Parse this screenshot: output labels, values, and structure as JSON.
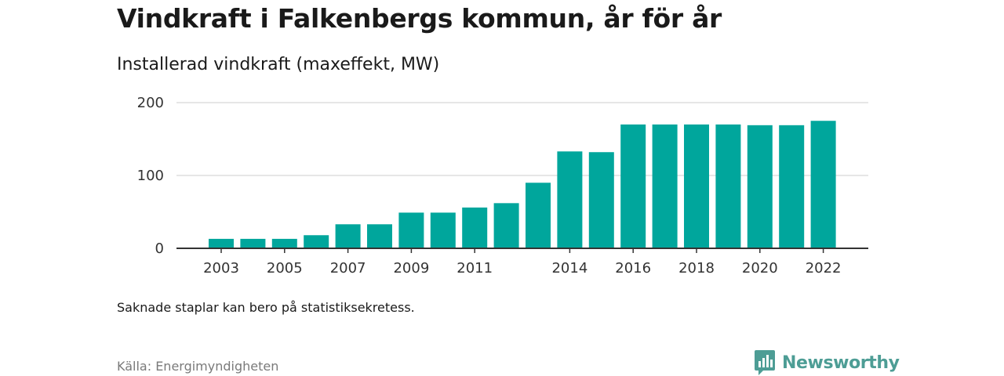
{
  "header": {
    "title": "Vindkraft i Falkenbergs kommun, år för år",
    "subtitle": "Installerad vindkraft (maxeffekt, MW)"
  },
  "footer": {
    "note": "Saknade staplar kan bero på statistiksekretess.",
    "source": "Källa: Energimyndigheten",
    "brand": "Newsworthy"
  },
  "colors": {
    "bar": "#00a69c",
    "grid": "#dddddd",
    "axis": "#333333",
    "brand": "#4d9d95"
  },
  "chart_data": {
    "type": "bar",
    "title": "Vindkraft i Falkenbergs kommun, år för år",
    "subtitle": "Installerad vindkraft (maxeffekt, MW)",
    "categories": [
      "2003",
      "2004",
      "2005",
      "2006",
      "2007",
      "2008",
      "2009",
      "2010",
      "2011",
      "2012",
      "2013",
      "2014",
      "2015",
      "2016",
      "2017",
      "2018",
      "2019",
      "2020",
      "2021",
      "2022"
    ],
    "values": [
      13,
      13,
      13,
      18,
      33,
      33,
      49,
      49,
      56,
      62,
      90,
      133,
      132,
      170,
      170,
      170,
      170,
      169,
      169,
      175
    ],
    "x_tick_labels": [
      "2003",
      "2005",
      "2007",
      "2009",
      "2011",
      "2014",
      "2016",
      "2018",
      "2020",
      "2022"
    ],
    "y_ticks": [
      0,
      100,
      200
    ],
    "ylim": [
      0,
      200
    ],
    "grid": true,
    "legend": "none"
  }
}
